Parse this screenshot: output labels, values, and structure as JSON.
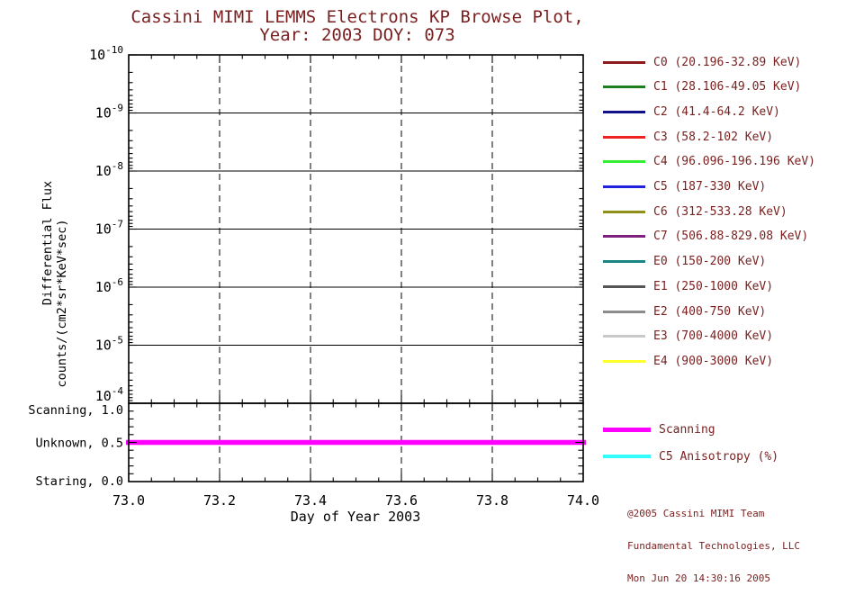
{
  "title": {
    "line1": "Cassini MIMI LEMMS Electrons KP Browse Plot,",
    "line2": "Year: 2003 DOY: 073"
  },
  "colors": {
    "background": "#ffffff",
    "accent_text": "#7a1f1f",
    "axis_text": "#000000",
    "axis_line": "#000000",
    "scanning_line": "#ff00ff",
    "anisotropy_line": "#33ffff"
  },
  "chart_data": {
    "type": "line",
    "title": "Cassini MIMI LEMMS Electrons KP Browse Plot, Year: 2003 DOY: 073",
    "x_axis": {
      "label": "Day of Year 2003",
      "min": 73.0,
      "max": 74.0,
      "major_tick_labels": [
        "73.0",
        "73.2",
        "73.4",
        "73.6",
        "73.8",
        "74.0"
      ],
      "major_tick_values": [
        73.0,
        73.2,
        73.4,
        73.6,
        73.8,
        74.0
      ],
      "minor_step": 0.05,
      "grid_vertical": "dashed at 73.2, 73.4, 73.6, 73.8"
    },
    "y_axis_flux": {
      "label_line1": "Differential Flux",
      "label_line2": "counts/(cm2*sr*KeV*sec)",
      "scale": "log",
      "inverted": true,
      "top_value": "1e-10",
      "bottom_value": "1e-4",
      "tick_exponents": [
        -10,
        -9,
        -8,
        -7,
        -6,
        -5,
        -4
      ],
      "grid_horizontal": "solid at each decade"
    },
    "y_axis_status": {
      "min": 0.0,
      "max": 1.0,
      "minor_step": 0.1,
      "tick_labels": [
        "Scanning, 1.0",
        "Unknown, 0.5",
        "Staring, 0.0"
      ],
      "tick_values": [
        1.0,
        0.5,
        0.0
      ]
    },
    "panels": [
      {
        "id": "flux",
        "note": "no flux data plotted in this interval",
        "series": []
      },
      {
        "id": "status",
        "series": [
          {
            "name": "Scanning",
            "color": "#ff00ff",
            "points": [
              [
                73.0,
                0.5
              ],
              [
                74.0,
                0.5
              ]
            ]
          }
        ]
      }
    ]
  },
  "legend_flux": [
    {
      "channel": "C0",
      "label": "C0 (20.196-32.89 KeV)",
      "color": "#8b1a1a"
    },
    {
      "channel": "C1",
      "label": "C1 (28.106-49.05 KeV)",
      "color": "#1e7d1e"
    },
    {
      "channel": "C2",
      "label": "C2 (41.4-64.2 KeV)",
      "color": "#10108b"
    },
    {
      "channel": "C3",
      "label": "C3 (58.2-102 KeV)",
      "color": "#ee2222"
    },
    {
      "channel": "C4",
      "label": "C4 (96.096-196.196 KeV)",
      "color": "#33ee33"
    },
    {
      "channel": "C5",
      "label": "C5 (187-330 KeV)",
      "color": "#2222dd"
    },
    {
      "channel": "C6",
      "label": "C6 (312-533.28 KeV)",
      "color": "#8f8f1a"
    },
    {
      "channel": "C7",
      "label": "C7 (506.88-829.08 KeV)",
      "color": "#7d1f7d"
    },
    {
      "channel": "E0",
      "label": "E0 (150-200 KeV)",
      "color": "#1a8585"
    },
    {
      "channel": "E1",
      "label": "E1 (250-1000 KeV)",
      "color": "#555555"
    },
    {
      "channel": "E2",
      "label": "E2 (400-750 KeV)",
      "color": "#8c8c8c"
    },
    {
      "channel": "E3",
      "label": "E3 (700-4000 KeV)",
      "color": "#c9c9c9"
    },
    {
      "channel": "E4",
      "label": "E4 (900-3000 KeV)",
      "color": "#ffff2a"
    }
  ],
  "legend_status": [
    {
      "label": "Scanning",
      "color": "#ff00ff"
    },
    {
      "label": "C5 Anisotropy (%)",
      "color": "#33ffff"
    }
  ],
  "credit": {
    "line1": "@2005 Cassini MIMI Team",
    "line2": "Fundamental Technologies, LLC",
    "line3": "Mon Jun 20 14:30:16 2005"
  }
}
